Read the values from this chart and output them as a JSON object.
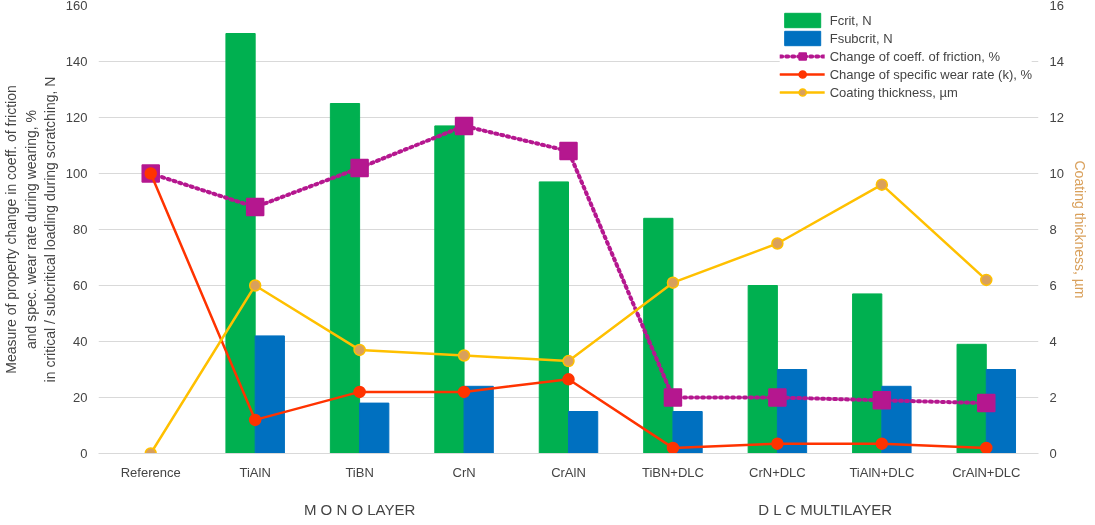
{
  "chart_data": {
    "type": "bar",
    "categories": [
      "Reference",
      "TiAlN",
      "TiBN",
      "CrN",
      "CrAlN",
      "TiBN+DLC",
      "CrN+DLC",
      "TiAlN+DLC",
      "CrAlN+DLC"
    ],
    "ylabel": "Measure of property change in coeff. of friction\nand spec. wear rate during wearing, %\nin critical / subcritical loading during scratching, N",
    "y2label": "Coating thickness, µm",
    "ylim": [
      0,
      160
    ],
    "yticks": [
      0,
      20,
      40,
      60,
      80,
      100,
      120,
      140,
      160
    ],
    "y2lim": [
      0,
      16
    ],
    "y2ticks": [
      0,
      2,
      4,
      6,
      8,
      10,
      12,
      14,
      16
    ],
    "grid": "y",
    "legend": "top right",
    "annotations": [
      "M O N O LAYER",
      "D L C   MULTILAYER"
    ],
    "series": [
      {
        "name": "Fcrit, N",
        "color": "#00b050",
        "values": [
          null,
          150,
          125,
          117,
          97,
          84,
          60,
          57,
          39
        ]
      },
      {
        "name": "Fsubcrit, N",
        "color": "#0070c0",
        "values": [
          null,
          42,
          18,
          24,
          15,
          15,
          30,
          24,
          30
        ]
      },
      {
        "name": "Change of coeff. of friction, %",
        "type": "line",
        "color": "#b5178f",
        "marker": "square",
        "line_style": "dotted",
        "values": [
          100,
          88,
          102,
          117,
          108,
          20,
          20,
          19,
          18
        ]
      },
      {
        "name": "Change of specific wear rate (k), %",
        "type": "line",
        "color": "#ff3300",
        "marker": "circle",
        "line_style": "solid",
        "values": [
          100,
          12,
          22,
          22,
          26.5,
          2,
          3.5,
          3.5,
          2
        ]
      },
      {
        "name": "Coating thickness, µm",
        "type": "line",
        "axis": "y2",
        "color": "#ffc000",
        "marker": "circle",
        "line_style": "solid",
        "values": [
          0,
          6,
          3.7,
          3.5,
          3.3,
          6.1,
          7.5,
          9.6,
          6.2
        ]
      }
    ]
  }
}
